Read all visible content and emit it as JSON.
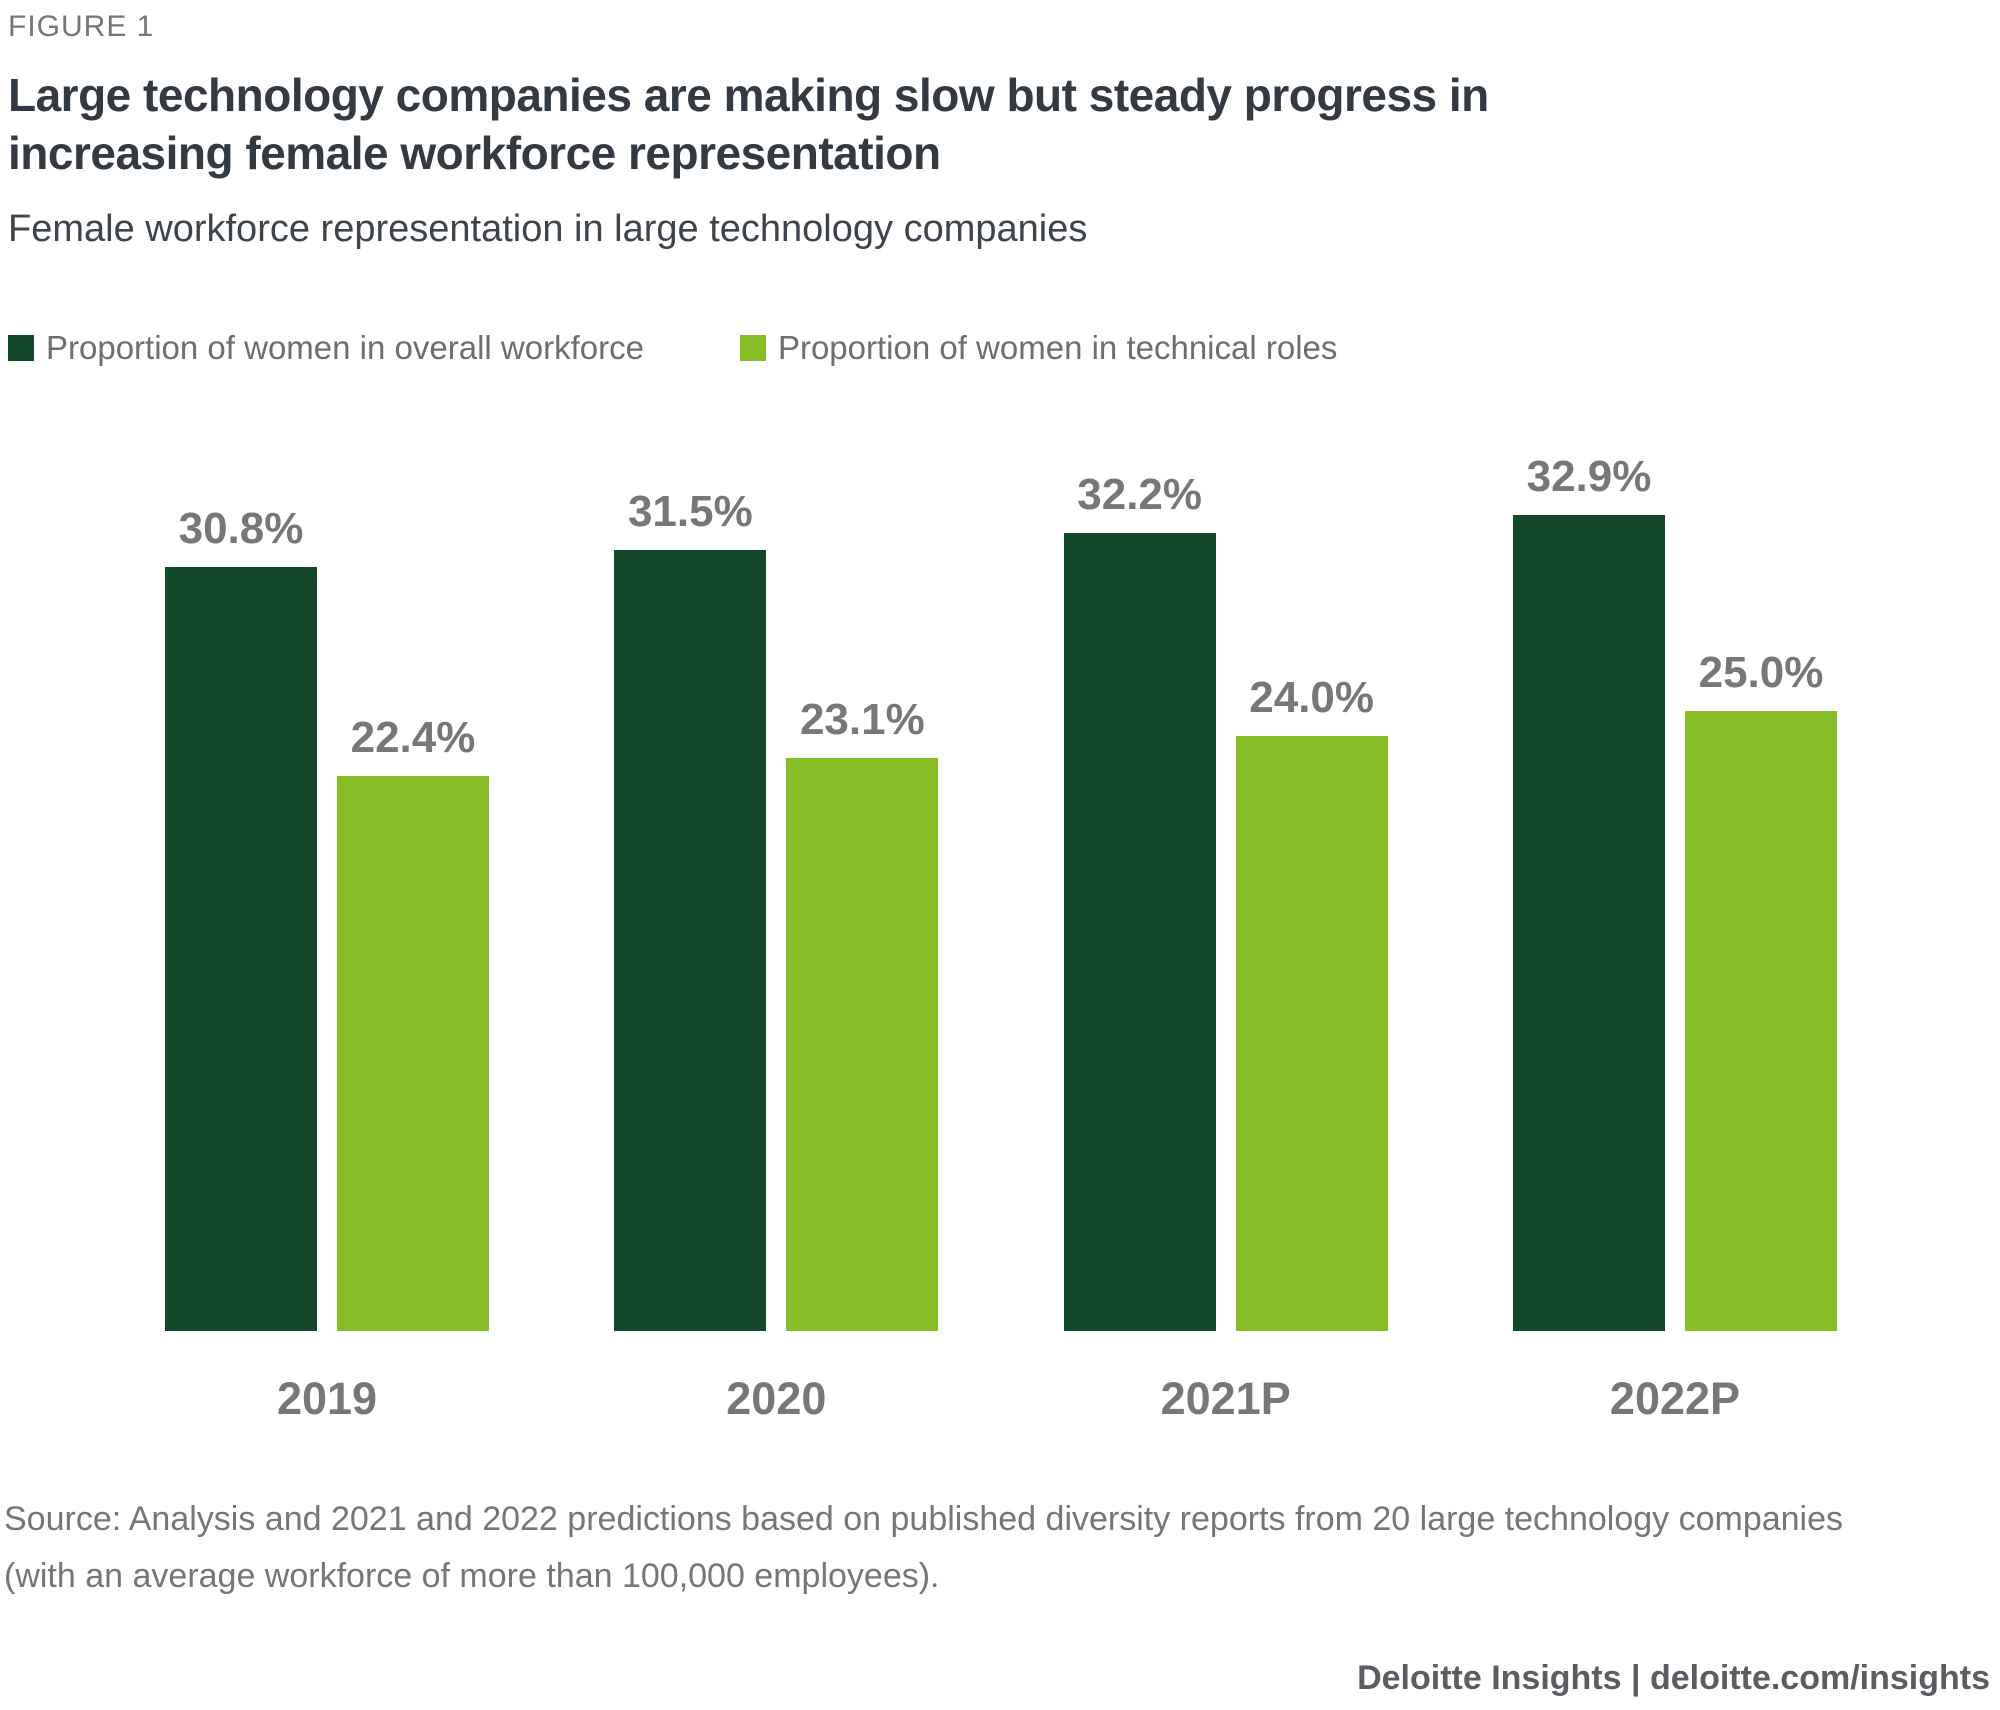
{
  "header": {
    "figure_label": "FIGURE 1",
    "title_lines": [
      "Large technology companies are making slow but steady progress in",
      "increasing female workforce representation"
    ],
    "subtitle": "Female workforce representation in large technology companies"
  },
  "legend": [
    {
      "label": "Proportion of women in overall workforce",
      "color": "#14482B"
    },
    {
      "label": "Proportion of women in technical roles",
      "color": "#86BC25"
    }
  ],
  "chart_data": {
    "type": "bar",
    "categories": [
      "2019",
      "2020",
      "2021P",
      "2022P"
    ],
    "series": [
      {
        "name": "Proportion of women in overall workforce",
        "color": "#14482B",
        "values": [
          30.8,
          31.5,
          32.2,
          32.9
        ]
      },
      {
        "name": "Proportion of women in technical roles",
        "color": "#86BC25",
        "values": [
          22.4,
          23.1,
          24.0,
          25.0
        ]
      }
    ],
    "value_labels": [
      [
        "30.8%",
        "31.5%",
        "32.2%",
        "32.9%"
      ],
      [
        "22.4%",
        "23.1%",
        "24.0%",
        "25.0%"
      ]
    ],
    "title": "Female workforce representation in large technology companies",
    "xlabel": "",
    "ylabel": "",
    "ylim": [
      0,
      36.7
    ],
    "grid": false,
    "legend_position": "top",
    "value_label_color": "#75787B",
    "category_label_color": "#75787B"
  },
  "source_lines": [
    "Source: Analysis and 2021 and 2022 predictions based on published diversity reports from 20 large technology companies",
    "(with an average workforce of more than 100,000 employees)."
  ],
  "footer": "Deloitte Insights | deloitte.com/insights"
}
